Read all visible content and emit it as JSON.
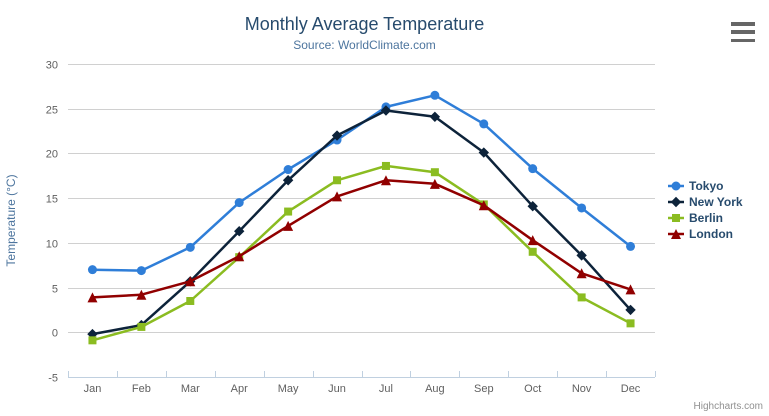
{
  "chart_data": {
    "type": "line",
    "title": "Monthly Average Temperature",
    "subtitle": "Source: WorldClimate.com",
    "categories": [
      "Jan",
      "Feb",
      "Mar",
      "Apr",
      "May",
      "Jun",
      "Jul",
      "Aug",
      "Sep",
      "Oct",
      "Nov",
      "Dec"
    ],
    "xlabel": "",
    "ylabel": "Temperature (°C)",
    "ylim": [
      -5,
      30
    ],
    "ytick_interval": 5,
    "grid": true,
    "legend_position": "right",
    "series": [
      {
        "name": "Tokyo",
        "color": "#2f7ed8",
        "marker": "circle",
        "values": [
          7.0,
          6.9,
          9.5,
          14.5,
          18.2,
          21.5,
          25.2,
          26.5,
          23.3,
          18.3,
          13.9,
          9.6
        ]
      },
      {
        "name": "New York",
        "color": "#0d233a",
        "marker": "diamond",
        "values": [
          -0.2,
          0.8,
          5.7,
          11.3,
          17.0,
          22.0,
          24.8,
          24.1,
          20.1,
          14.1,
          8.6,
          2.5
        ]
      },
      {
        "name": "Berlin",
        "color": "#8bbc21",
        "marker": "square",
        "values": [
          -0.9,
          0.6,
          3.5,
          8.4,
          13.5,
          17.0,
          18.6,
          17.9,
          14.3,
          9.0,
          3.9,
          1.0
        ]
      },
      {
        "name": "London",
        "color": "#910000",
        "marker": "triangle",
        "values": [
          3.9,
          4.2,
          5.7,
          8.5,
          11.9,
          15.2,
          17.0,
          16.6,
          14.2,
          10.3,
          6.6,
          4.8
        ]
      }
    ]
  },
  "credits": "Highcharts.com",
  "export_menu": {
    "icon": "hamburger-menu-icon"
  },
  "colors": {
    "title": "#274b6d",
    "subtitle": "#4d759e",
    "axis_title": "#4d759e",
    "axis_labels": "#606060",
    "gridline": "#d0d0d0",
    "axis_line": "#c0d0e0",
    "legend_text": "#274b6d",
    "credits": "#909090",
    "menu_icon": "#666666",
    "background": "#ffffff"
  }
}
